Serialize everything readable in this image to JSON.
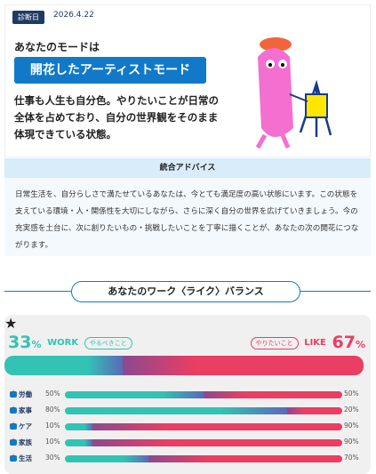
{
  "header": {
    "badge": "診断日",
    "date": "2026.4.22",
    "lead": "あなたのモードは",
    "mode": "開花したアーティストモード",
    "description": "仕事も人生も自分色。やりたいことが日常の全体を占めており、自分の世界観をそのまま体現できている状態。"
  },
  "advice": {
    "title": "統合アドバイス",
    "text": "日常生活を、自分らしさで満たせているあなたは、今とても満足度の高い状態にいます。この状態を支えている環境・人・関係性を大切にしながら、さらに深く自分の世界を広げていきましょう。今の充実感を土台に、次に創りたいもの・挑戦したいことを丁寧に描くことが、あなたの次の開花につながります。"
  },
  "balance": {
    "title": "あなたのワーク〈ライク〉バランス",
    "unit": "%",
    "work_label": "WORK",
    "work_tag": "やるべきこと",
    "like_label": "LIKE",
    "like_tag": "やりたいこと",
    "work": 33,
    "like": 67,
    "rows": [
      {
        "label": "労働",
        "work": 50,
        "like": 50
      },
      {
        "label": "家事",
        "work": 80,
        "like": 20
      },
      {
        "label": "ケア",
        "work": 10,
        "like": 90
      },
      {
        "label": "家族",
        "work": 10,
        "like": 90
      },
      {
        "label": "生活",
        "work": 30,
        "like": 70
      }
    ]
  }
}
